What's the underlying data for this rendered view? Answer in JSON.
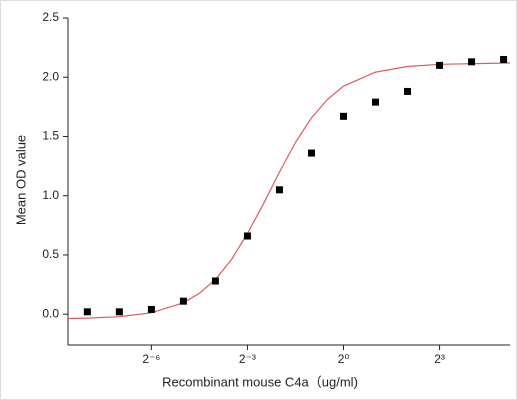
{
  "chart_data": {
    "type": "scatter",
    "x_label": "Recombinant mouse C4a（ug/ml)",
    "y_label": "Mean OD value",
    "x_log_base": 2,
    "xlim": [
      0.00257,
      36.76
    ],
    "ylim": [
      -0.26,
      2.5
    ],
    "xticks": [
      {
        "value": 0.015625,
        "label": "2⁻⁶"
      },
      {
        "value": 0.125,
        "label": "2⁻³"
      },
      {
        "value": 1,
        "label": "2⁰"
      },
      {
        "value": 8,
        "label": "2³"
      }
    ],
    "yticks": [
      {
        "value": 0,
        "label": "0.0"
      },
      {
        "value": 0.5,
        "label": "0.5"
      },
      {
        "value": 1,
        "label": "1.0"
      },
      {
        "value": 1.5,
        "label": "1.5"
      },
      {
        "value": 2,
        "label": "2.0"
      },
      {
        "value": 2.5,
        "label": "2.5"
      }
    ],
    "series": [
      {
        "kind": "points",
        "color": "#000000",
        "x": [
          0.00390625,
          0.0078125,
          0.015625,
          0.03125,
          0.0625,
          0.125,
          0.25,
          0.5,
          1,
          2,
          4,
          8,
          16,
          32
        ],
        "values": [
          0.02,
          0.02,
          0.04,
          0.11,
          0.28,
          0.66,
          1.05,
          1.36,
          1.67,
          1.79,
          1.88,
          2.1,
          2.13,
          2.15
        ]
      },
      {
        "kind": "line",
        "color": "#e05a5a",
        "x": [
          0.00257,
          0.00390625,
          0.0078125,
          0.015625,
          0.03125,
          0.0442,
          0.0625,
          0.0884,
          0.125,
          0.1768,
          0.25,
          0.3536,
          0.5,
          0.7071,
          1,
          2,
          4,
          8,
          36.76
        ],
        "values": [
          -0.036,
          -0.033,
          -0.021,
          0.012,
          0.096,
          0.176,
          0.294,
          0.46,
          0.68,
          0.932,
          1.2,
          1.45,
          1.658,
          1.813,
          1.924,
          2.043,
          2.091,
          2.109,
          2.12
        ]
      }
    ]
  }
}
